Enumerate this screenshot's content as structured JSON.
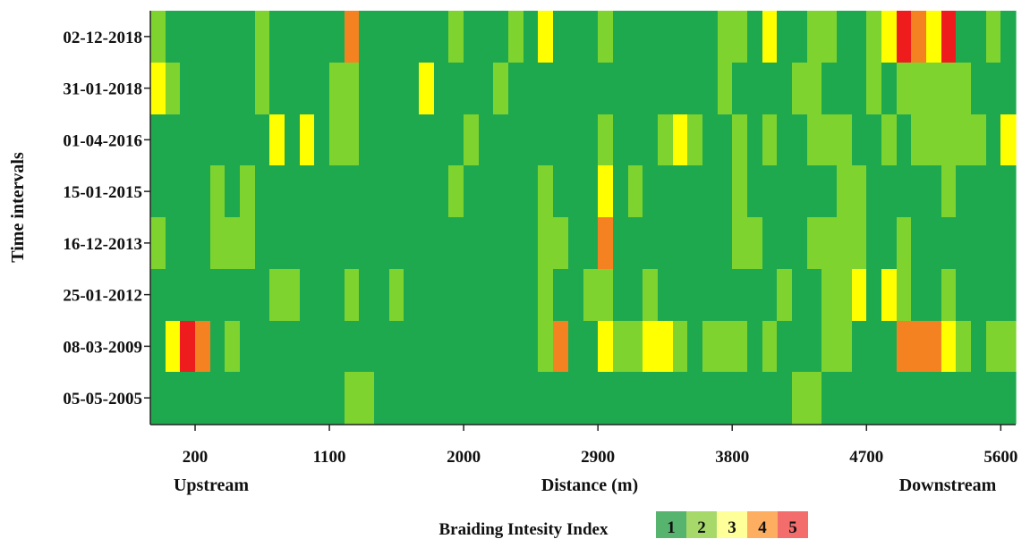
{
  "chart_data": {
    "type": "heatmap",
    "xlabel": "Distance (m)",
    "ylabel": "Time intervals",
    "x_side_labels": {
      "left": "Upstream",
      "right": "Downstream"
    },
    "x_ticks": [
      200,
      1100,
      2000,
      2900,
      3800,
      4700,
      5600
    ],
    "xlim": [
      -100,
      5700
    ],
    "cell_width_m": 100,
    "x_centers": [
      -50,
      50,
      150,
      250,
      350,
      450,
      550,
      650,
      750,
      850,
      950,
      1050,
      1150,
      1250,
      1350,
      1450,
      1550,
      1650,
      1750,
      1850,
      1950,
      2050,
      2150,
      2250,
      2350,
      2450,
      2550,
      2650,
      2750,
      2850,
      2950,
      3050,
      3150,
      3250,
      3350,
      3450,
      3550,
      3650,
      3750,
      3850,
      3950,
      4050,
      4150,
      4250,
      4350,
      4450,
      4550,
      4650,
      4750,
      4850,
      4950,
      5050,
      5150,
      5250,
      5350,
      5450,
      5550,
      5650
    ],
    "y_categories": [
      "02-12-2018",
      "31-01-2018",
      "01-04-2016",
      "15-01-2015",
      "16-12-2013",
      "25-01-2012",
      "08-03-2009",
      "05-05-2005"
    ],
    "values": [
      [
        2,
        1,
        1,
        1,
        1,
        1,
        1,
        2,
        1,
        1,
        1,
        1,
        1,
        4,
        1,
        1,
        1,
        1,
        1,
        1,
        2,
        1,
        1,
        1,
        2,
        1,
        3,
        1,
        1,
        1,
        2,
        1,
        1,
        1,
        1,
        1,
        1,
        1,
        2,
        2,
        1,
        3,
        1,
        1,
        2,
        2,
        1,
        1,
        2,
        3,
        5,
        4,
        3,
        5,
        1,
        1,
        2,
        1
      ],
      [
        3,
        2,
        1,
        1,
        1,
        1,
        1,
        2,
        1,
        1,
        1,
        1,
        2,
        2,
        1,
        1,
        1,
        1,
        3,
        1,
        1,
        1,
        1,
        2,
        1,
        1,
        1,
        1,
        1,
        1,
        1,
        1,
        1,
        1,
        1,
        1,
        1,
        1,
        2,
        1,
        1,
        1,
        1,
        2,
        2,
        1,
        1,
        1,
        2,
        1,
        2,
        2,
        2,
        2,
        2,
        1,
        1,
        1
      ],
      [
        1,
        1,
        1,
        1,
        1,
        1,
        1,
        1,
        3,
        1,
        3,
        1,
        2,
        2,
        1,
        1,
        1,
        1,
        1,
        1,
        1,
        2,
        1,
        1,
        1,
        1,
        1,
        1,
        1,
        1,
        2,
        1,
        1,
        1,
        2,
        3,
        2,
        1,
        1,
        2,
        1,
        2,
        1,
        1,
        2,
        2,
        2,
        1,
        1,
        2,
        1,
        2,
        2,
        2,
        2,
        2,
        1,
        3
      ],
      [
        1,
        1,
        1,
        1,
        2,
        1,
        2,
        1,
        1,
        1,
        1,
        1,
        1,
        1,
        1,
        1,
        1,
        1,
        1,
        1,
        2,
        1,
        1,
        1,
        1,
        1,
        2,
        1,
        1,
        1,
        3,
        1,
        2,
        1,
        1,
        1,
        1,
        1,
        1,
        2,
        1,
        1,
        1,
        1,
        1,
        1,
        2,
        2,
        1,
        1,
        1,
        1,
        1,
        2,
        1,
        1,
        1,
        1
      ],
      [
        2,
        1,
        1,
        1,
        2,
        2,
        2,
        1,
        1,
        1,
        1,
        1,
        1,
        1,
        1,
        1,
        1,
        1,
        1,
        1,
        1,
        1,
        1,
        1,
        1,
        1,
        2,
        2,
        1,
        1,
        4,
        1,
        1,
        1,
        1,
        1,
        1,
        1,
        1,
        2,
        2,
        1,
        1,
        1,
        2,
        2,
        2,
        2,
        1,
        1,
        2,
        1,
        1,
        1,
        1,
        1,
        1,
        1
      ],
      [
        1,
        1,
        1,
        1,
        1,
        1,
        1,
        1,
        2,
        2,
        1,
        1,
        1,
        2,
        1,
        1,
        2,
        1,
        1,
        1,
        1,
        1,
        1,
        1,
        1,
        1,
        2,
        1,
        1,
        2,
        2,
        1,
        1,
        2,
        1,
        1,
        1,
        1,
        1,
        1,
        1,
        1,
        2,
        1,
        1,
        2,
        2,
        3,
        1,
        3,
        2,
        1,
        1,
        2,
        1,
        1,
        1,
        1
      ],
      [
        1,
        3,
        5,
        4,
        1,
        2,
        1,
        1,
        1,
        1,
        1,
        1,
        1,
        1,
        1,
        1,
        1,
        1,
        1,
        1,
        1,
        1,
        1,
        1,
        1,
        1,
        2,
        4,
        1,
        1,
        3,
        2,
        2,
        3,
        3,
        2,
        1,
        2,
        2,
        2,
        1,
        2,
        1,
        1,
        1,
        2,
        2,
        1,
        1,
        1,
        4,
        4,
        4,
        3,
        2,
        1,
        2,
        2
      ],
      [
        1,
        1,
        1,
        1,
        1,
        1,
        1,
        1,
        1,
        1,
        1,
        1,
        1,
        2,
        2,
        1,
        1,
        1,
        1,
        1,
        1,
        1,
        1,
        1,
        1,
        1,
        1,
        1,
        1,
        1,
        1,
        1,
        1,
        1,
        1,
        1,
        1,
        1,
        1,
        1,
        1,
        1,
        1,
        2,
        2,
        1,
        1,
        1,
        1,
        1,
        1,
        1,
        1,
        1,
        1,
        1,
        1,
        1
      ]
    ],
    "legend": {
      "title": "Braiding Intesity Index",
      "placement": "bottom-center",
      "levels": [
        {
          "value": "1",
          "color": "#1fa94f",
          "swatch": "#57b46e"
        },
        {
          "value": "2",
          "color": "#7fd32e",
          "swatch": "#a6d96a"
        },
        {
          "value": "3",
          "color": "#ffff00",
          "swatch": "#ffff99"
        },
        {
          "value": "4",
          "color": "#f58221",
          "swatch": "#fdae61"
        },
        {
          "value": "5",
          "color": "#ee1c1c",
          "swatch": "#f46d6d"
        }
      ]
    },
    "grid": false
  }
}
